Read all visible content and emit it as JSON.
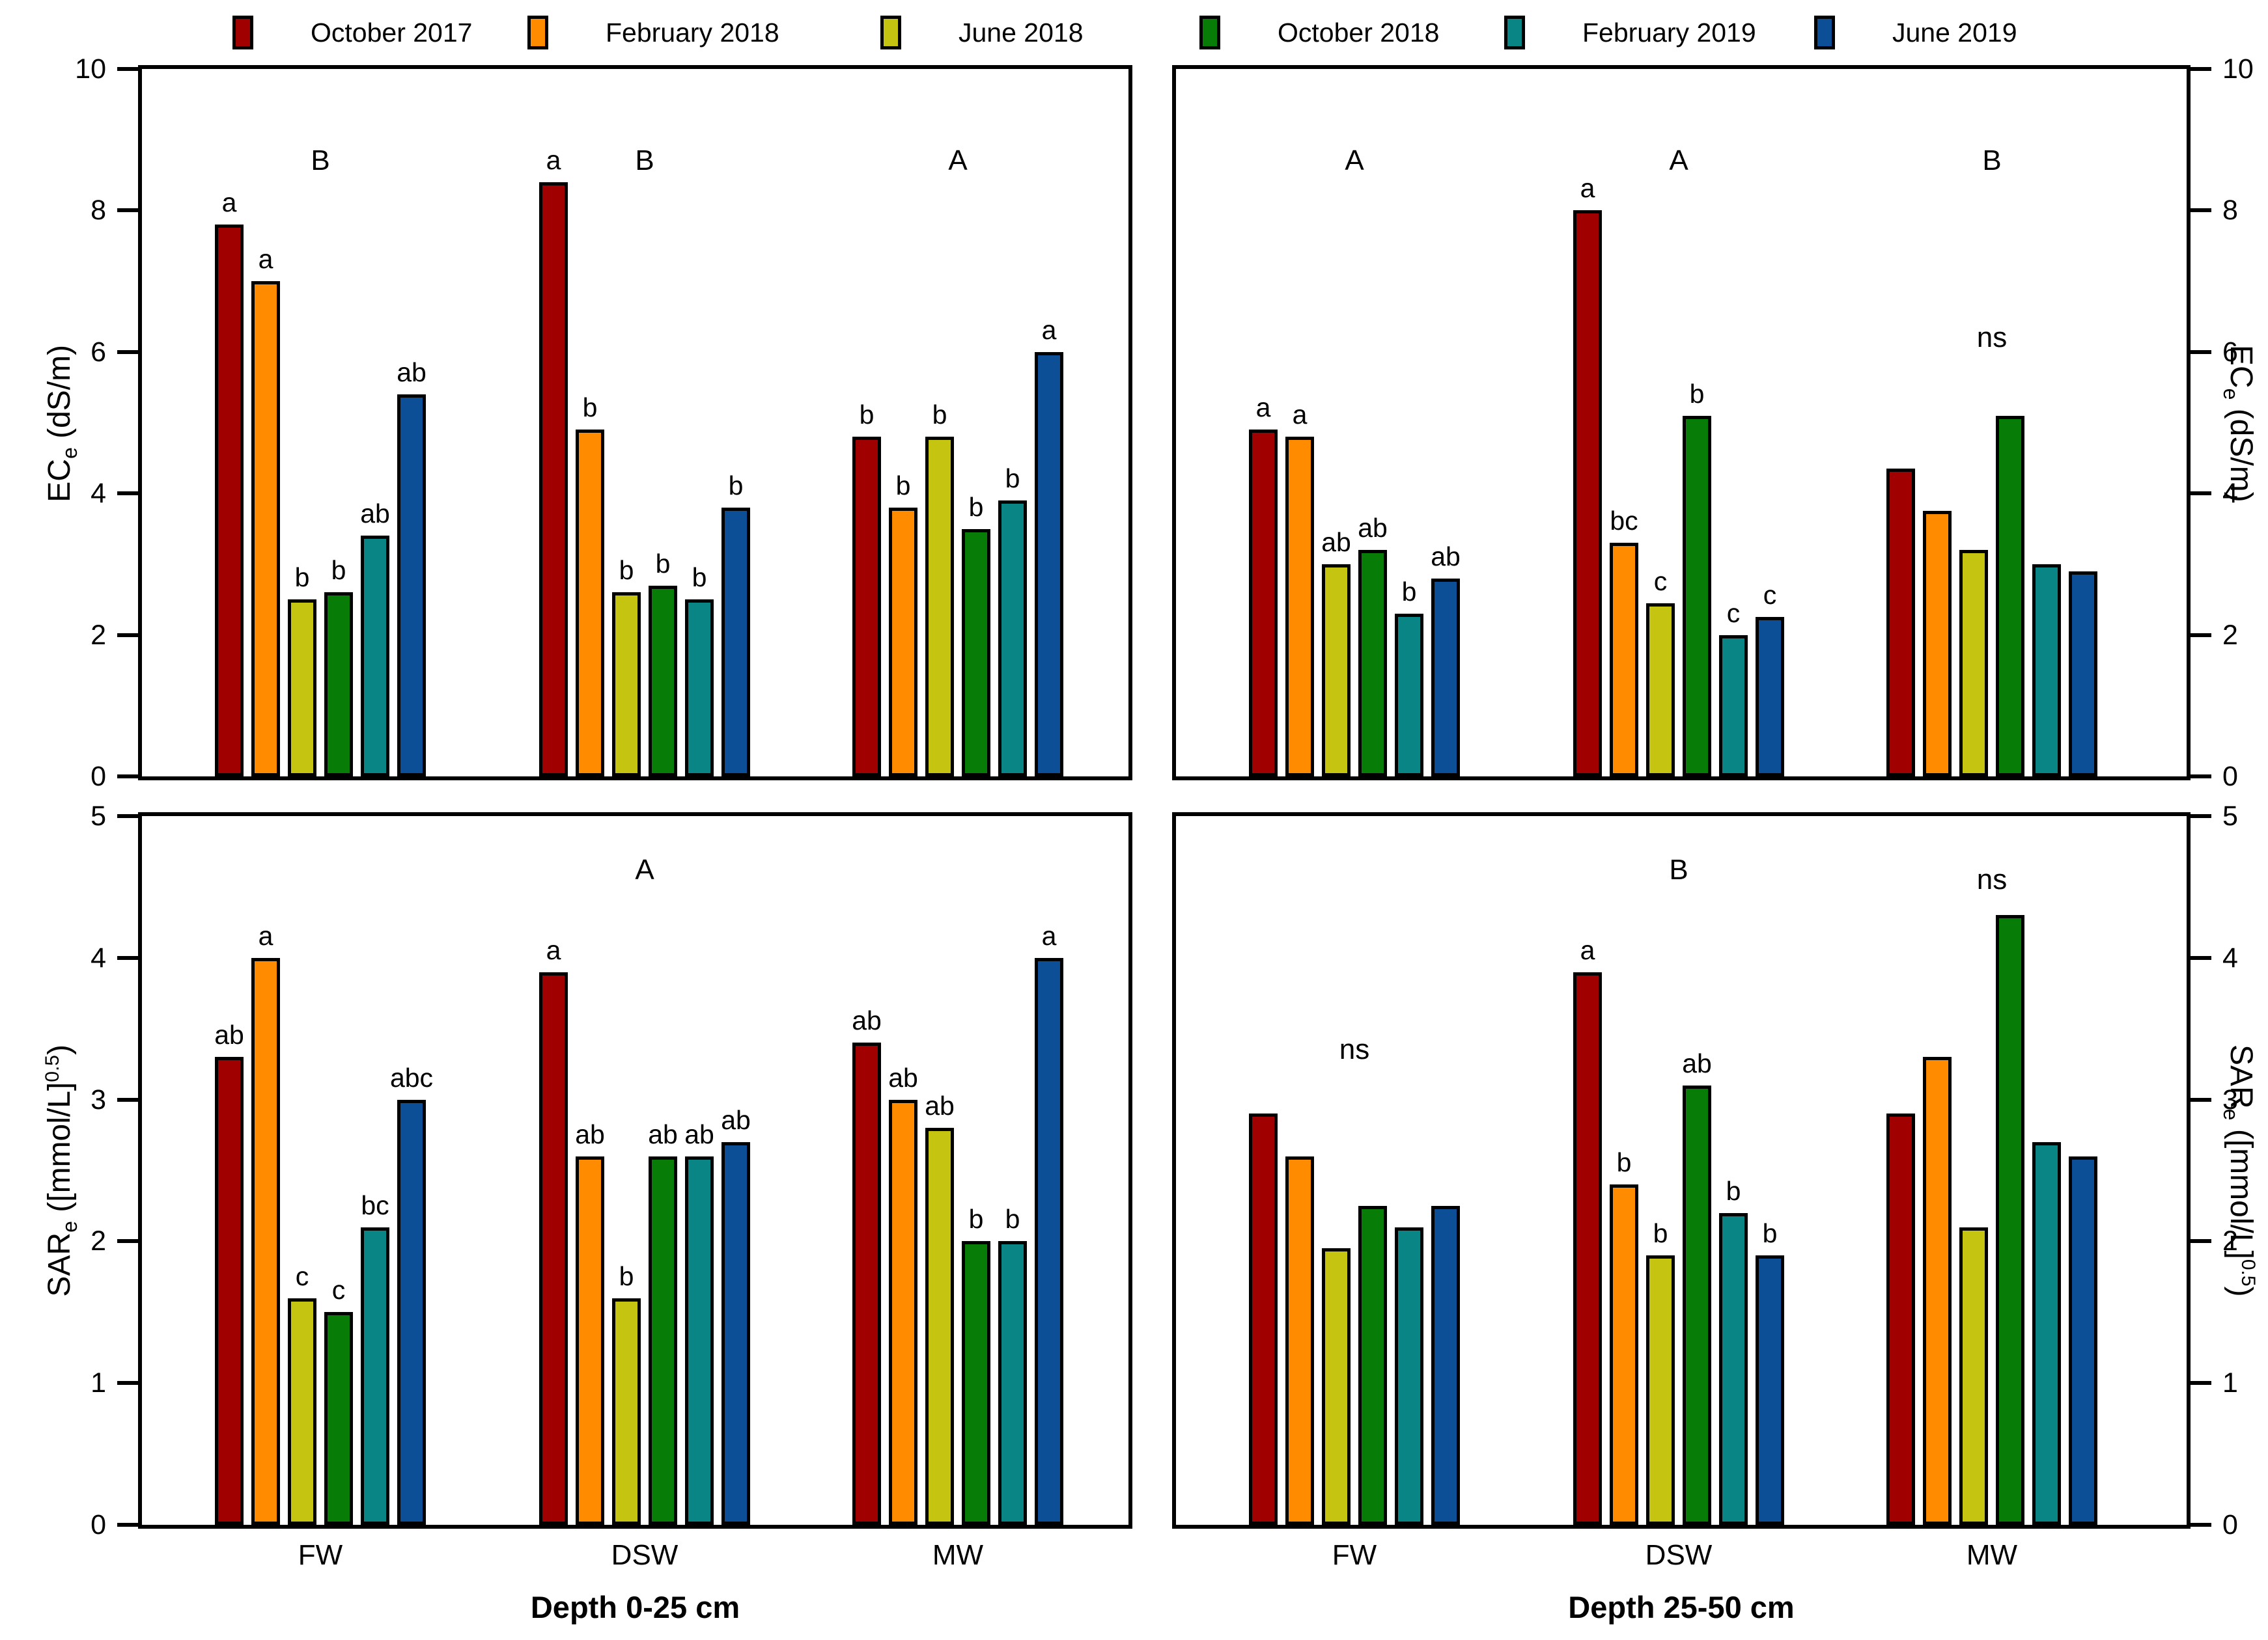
{
  "legend": {
    "items": [
      {
        "label": "October 2017",
        "color": "#A00000"
      },
      {
        "label": "February 2018",
        "color": "#FF8C00"
      },
      {
        "label": "June 2018",
        "color": "#C4C411"
      },
      {
        "label": "October 2018",
        "color": "#077D07"
      },
      {
        "label": "February 2019",
        "color": "#0A8585"
      },
      {
        "label": "June 2019",
        "color": "#0D4F96"
      }
    ]
  },
  "axis_labels": {
    "ec": {
      "pre": "EC",
      "sub": "e",
      "post": " (dS/m)",
      "sup": "",
      "end": ""
    },
    "sar": {
      "pre": "SAR",
      "sub": "e",
      "post": " ([mmol/L]",
      "sup": "0.5",
      "end": ")"
    }
  },
  "x_categories": [
    "FW",
    "DSW",
    "MW"
  ],
  "column_titles": [
    "Depth 0-25 cm",
    "Depth 25-50 cm"
  ],
  "chart_data": [
    {
      "type": "bar",
      "title": "ECe at depth 0-25 cm",
      "position": "top-left",
      "ylabel": "ECe (dS/m)",
      "ylim": [
        0,
        10
      ],
      "yticks": [
        0,
        2,
        4,
        6,
        8,
        10
      ],
      "tick_side": "left",
      "categories": [
        "FW",
        "DSW",
        "MW"
      ],
      "series": [
        {
          "name": "October 2017",
          "values": [
            7.8,
            8.4,
            4.8
          ]
        },
        {
          "name": "February 2018",
          "values": [
            7.0,
            4.9,
            3.8
          ]
        },
        {
          "name": "June 2018",
          "values": [
            2.5,
            2.6,
            4.8
          ]
        },
        {
          "name": "October 2018",
          "values": [
            2.6,
            2.7,
            3.5
          ]
        },
        {
          "name": "February 2019",
          "values": [
            3.4,
            2.5,
            3.9
          ]
        },
        {
          "name": "June 2019",
          "values": [
            5.4,
            3.8,
            6.0
          ]
        }
      ],
      "sig_letters": {
        "FW": [
          "a",
          "a",
          "b",
          "b",
          "ab",
          "ab"
        ],
        "DSW": [
          "a",
          "b",
          "b",
          "b",
          "b",
          "b"
        ],
        "MW": [
          "b",
          "b",
          "b",
          "b",
          "b",
          "a"
        ]
      },
      "annotations": [
        {
          "group": "FW",
          "text": "B",
          "y": 8.7
        },
        {
          "group": "DSW",
          "text": "B",
          "y": 8.7
        },
        {
          "group": "MW",
          "text": "A",
          "y": 8.7
        }
      ]
    },
    {
      "type": "bar",
      "title": "ECe at depth 25-50 cm",
      "position": "top-right",
      "ylabel": "ECe (dS/m)",
      "ylim": [
        0,
        10
      ],
      "yticks": [
        0,
        2,
        4,
        6,
        8,
        10
      ],
      "tick_side": "right",
      "categories": [
        "FW",
        "DSW",
        "MW"
      ],
      "series": [
        {
          "name": "October 2017",
          "values": [
            4.9,
            8.0,
            4.35
          ]
        },
        {
          "name": "February 2018",
          "values": [
            4.8,
            3.3,
            3.75
          ]
        },
        {
          "name": "June 2018",
          "values": [
            3.0,
            2.45,
            3.2
          ]
        },
        {
          "name": "October 2018",
          "values": [
            3.2,
            5.1,
            5.1
          ]
        },
        {
          "name": "February 2019",
          "values": [
            2.3,
            2.0,
            3.0
          ]
        },
        {
          "name": "June 2019",
          "values": [
            2.8,
            2.25,
            2.9
          ]
        }
      ],
      "sig_letters": {
        "FW": [
          "a",
          "a",
          "ab",
          "ab",
          "b",
          "ab"
        ],
        "DSW": [
          "a",
          "bc",
          "c",
          "b",
          "c",
          "c"
        ],
        "MW": null
      },
      "annotations": [
        {
          "group": "FW",
          "text": "A",
          "y": 8.7
        },
        {
          "group": "DSW",
          "text": "A",
          "y": 8.7
        },
        {
          "group": "MW",
          "text": "B",
          "y": 8.7
        },
        {
          "group": "MW",
          "text": "ns",
          "y": 6.2
        }
      ]
    },
    {
      "type": "bar",
      "title": "SARe at depth 0-25 cm",
      "position": "bottom-left",
      "ylabel": "SARe ([mmol/L]^0.5)",
      "ylim": [
        0,
        5
      ],
      "yticks": [
        0,
        1,
        2,
        3,
        4,
        5
      ],
      "tick_side": "left",
      "categories": [
        "FW",
        "DSW",
        "MW"
      ],
      "series": [
        {
          "name": "October 2017",
          "values": [
            3.3,
            3.9,
            3.4
          ]
        },
        {
          "name": "February 2018",
          "values": [
            4.0,
            2.6,
            3.0
          ]
        },
        {
          "name": "June 2018",
          "values": [
            1.6,
            1.6,
            2.8
          ]
        },
        {
          "name": "October 2018",
          "values": [
            1.5,
            2.6,
            2.0
          ]
        },
        {
          "name": "February 2019",
          "values": [
            2.1,
            2.6,
            2.0
          ]
        },
        {
          "name": "June 2019",
          "values": [
            3.0,
            2.7,
            4.0
          ]
        }
      ],
      "sig_letters": {
        "FW": [
          "ab",
          "a",
          "c",
          "c",
          "bc",
          "abc"
        ],
        "DSW": [
          "a",
          "ab",
          "b",
          "ab",
          "ab",
          "ab"
        ],
        "MW": [
          "ab",
          "ab",
          "ab",
          "b",
          "b",
          "a"
        ]
      },
      "annotations": [
        {
          "group": "DSW",
          "text": "A",
          "y": 4.62
        }
      ]
    },
    {
      "type": "bar",
      "title": "SARe at depth 25-50 cm",
      "position": "bottom-right",
      "ylabel": "SARe ([mmol/L]^0.5)",
      "ylim": [
        0,
        5
      ],
      "yticks": [
        0,
        1,
        2,
        3,
        4,
        5
      ],
      "tick_side": "right",
      "categories": [
        "FW",
        "DSW",
        "MW"
      ],
      "series": [
        {
          "name": "October 2017",
          "values": [
            2.9,
            3.9,
            2.9
          ]
        },
        {
          "name": "February 2018",
          "values": [
            2.6,
            2.4,
            3.3
          ]
        },
        {
          "name": "June 2018",
          "values": [
            1.95,
            1.9,
            2.1
          ]
        },
        {
          "name": "October 2018",
          "values": [
            2.25,
            3.1,
            4.3
          ]
        },
        {
          "name": "February 2019",
          "values": [
            2.1,
            2.2,
            2.7
          ]
        },
        {
          "name": "June 2019",
          "values": [
            2.25,
            1.9,
            2.6
          ]
        }
      ],
      "sig_letters": {
        "FW": null,
        "DSW": [
          "a",
          "b",
          "b",
          "ab",
          "b",
          "b"
        ],
        "MW": null
      },
      "annotations": [
        {
          "group": "DSW",
          "text": "B",
          "y": 4.62
        },
        {
          "group": "FW",
          "text": "ns",
          "y": 3.35
        },
        {
          "group": "MW",
          "text": "ns",
          "y": 4.55
        }
      ]
    }
  ]
}
